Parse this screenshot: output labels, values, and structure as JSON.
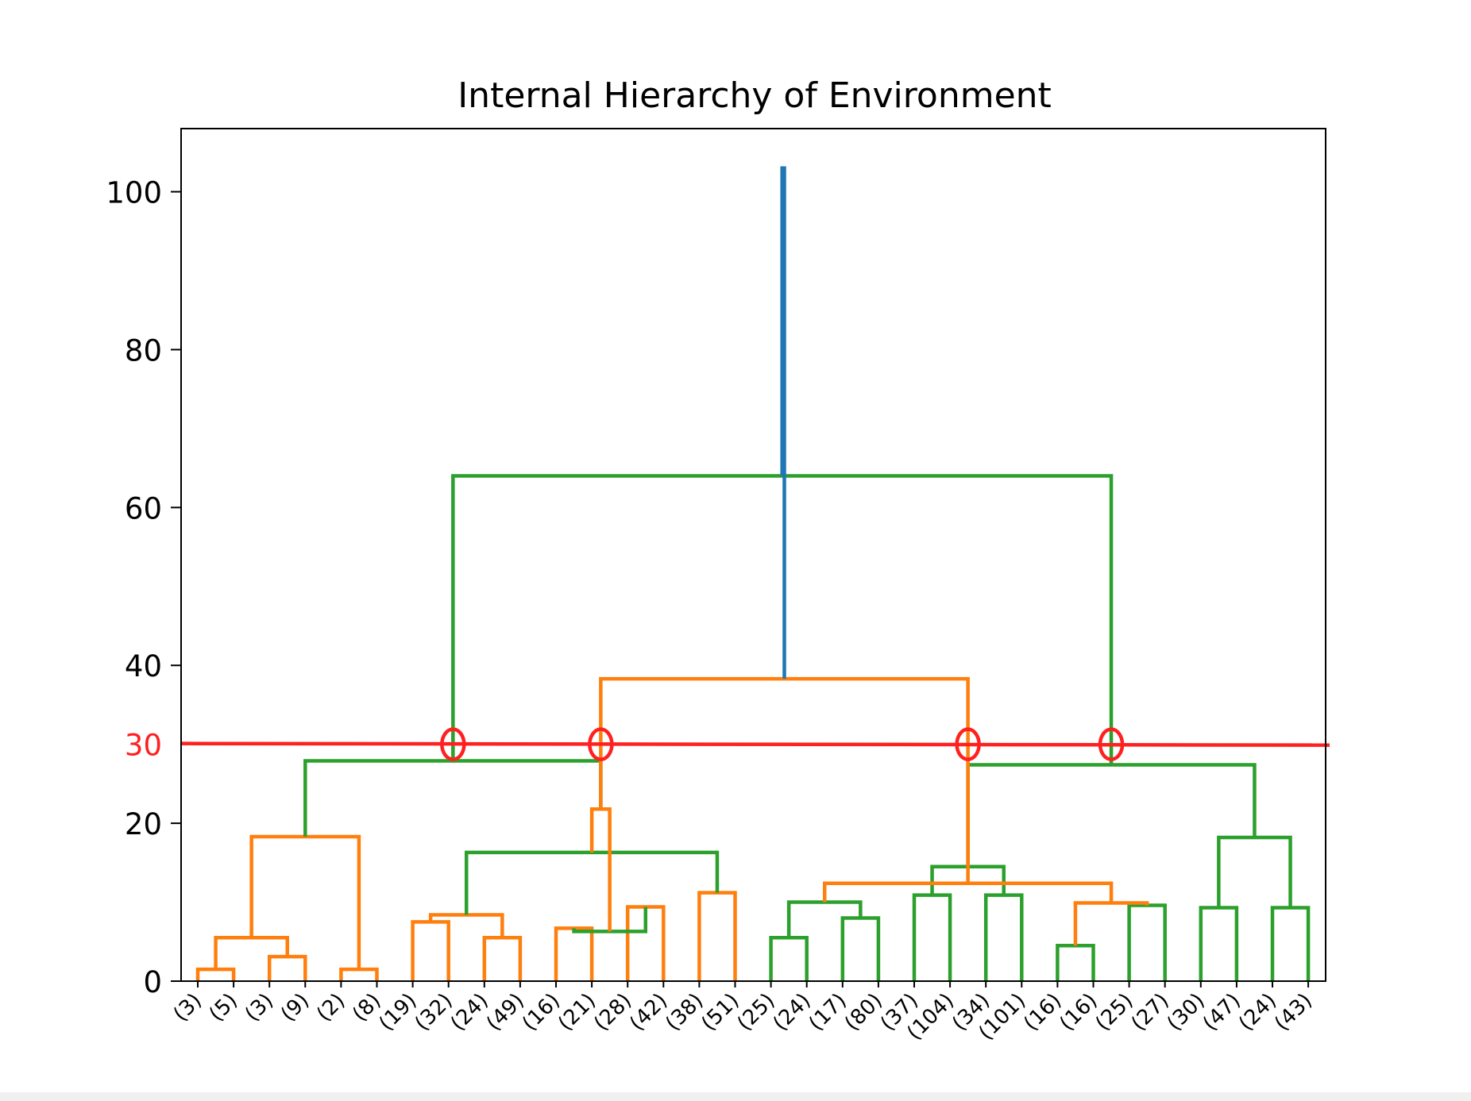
{
  "chart_data": {
    "type": "dendrogram",
    "title": "Internal Hierarchy of Environment",
    "xlabel": "",
    "ylabel": "",
    "ylim": [
      0,
      108
    ],
    "yticks": [
      0,
      20,
      40,
      60,
      80,
      100
    ],
    "leaf_labels": [
      "(3)",
      "(5)",
      "(3)",
      "(9)",
      "(2)",
      "(8)",
      "(19)",
      "(32)",
      "(24)",
      "(49)",
      "(16)",
      "(21)",
      "(28)",
      "(42)",
      "(38)",
      "(51)",
      "(25)",
      "(24)",
      "(17)",
      "(80)",
      "(37)",
      "(104)",
      "(34)",
      "(101)",
      "(16)",
      "(16)",
      "(25)",
      "(27)",
      "(30)",
      "(47)",
      "(24)",
      "(43)"
    ],
    "merges": [
      {
        "left": 0,
        "right": 1,
        "height": 1.5,
        "color": "orange"
      },
      {
        "left": 2,
        "right": 3,
        "height": 3.1,
        "color": "orange"
      },
      {
        "left": 4,
        "right": 5,
        "height": 1.5,
        "color": "orange"
      },
      {
        "left": 6,
        "right": 7,
        "height": 7.5,
        "color": "orange"
      },
      {
        "left": 8,
        "right": 9,
        "height": 5.5,
        "color": "orange"
      },
      {
        "left": 10,
        "right": 11,
        "height": 6.7,
        "color": "orange"
      },
      {
        "left": 12,
        "right": 13,
        "height": 9.4,
        "color": "orange"
      },
      {
        "left": 14,
        "right": 15,
        "height": 11.2,
        "color": "orange"
      },
      {
        "left": 16,
        "right": 17,
        "height": 5.5,
        "color": "green"
      },
      {
        "left": 18,
        "right": 19,
        "height": 8.0,
        "color": "green"
      },
      {
        "left": 20,
        "right": 21,
        "height": 10.9,
        "color": "green"
      },
      {
        "left": 22,
        "right": 23,
        "height": 10.9,
        "color": "green"
      },
      {
        "left": 24,
        "right": 25,
        "height": 4.5,
        "color": "green"
      },
      {
        "left": 26,
        "right": 27,
        "height": 9.6,
        "color": "green"
      },
      {
        "left": 28,
        "right": 29,
        "height": 9.3,
        "color": "green"
      },
      {
        "left": 30,
        "right": 31,
        "height": 9.3,
        "color": "green"
      },
      {
        "left": 32,
        "right": 33,
        "height": 5.5,
        "color": "orange"
      },
      {
        "left": 35,
        "right": 36,
        "height": 8.4,
        "color": "orange"
      },
      {
        "left": 37,
        "right": 38,
        "height": 6.3,
        "color": "green"
      },
      {
        "left": 40,
        "right": 41,
        "height": 10.0,
        "color": "green"
      },
      {
        "left": 42,
        "right": 43,
        "height": 14.5,
        "color": "green"
      },
      {
        "left": 44,
        "right": 45,
        "height": 9.9,
        "color": "orange"
      },
      {
        "left": 39,
        "right": 49,
        "height": 16.3,
        "color": "green"
      },
      {
        "left": 46,
        "right": 47,
        "height": 18.2,
        "color": "green"
      },
      {
        "left": 53,
        "right": 51,
        "height": 12.4,
        "color": "orange"
      },
      {
        "left": 34,
        "right": 48,
        "height": 18.3,
        "color": "orange"
      },
      {
        "left": 50,
        "right": 54,
        "height": 21.8,
        "color": "orange"
      },
      {
        "left": 52,
        "right": 55,
        "height": 27.4,
        "color": "green"
      },
      {
        "left": 57,
        "right": 58,
        "height": 27.9,
        "color": "green"
      },
      {
        "left": 56,
        "right": 58,
        "height": 38.3,
        "color": "orange"
      },
      {
        "left": 59,
        "right": 60,
        "height": 64.0,
        "color": "green"
      },
      {
        "left": 61,
        "right": 62,
        "height": 103.0,
        "color": "blue"
      }
    ],
    "cut_line": {
      "height": 30,
      "label": "30",
      "color": "#ff2020"
    },
    "cut_intersections": 4,
    "colors": {
      "orange": "#ff7f0e",
      "green": "#2ca02c",
      "blue": "#1f77b4",
      "cut": "#ff2020"
    }
  }
}
